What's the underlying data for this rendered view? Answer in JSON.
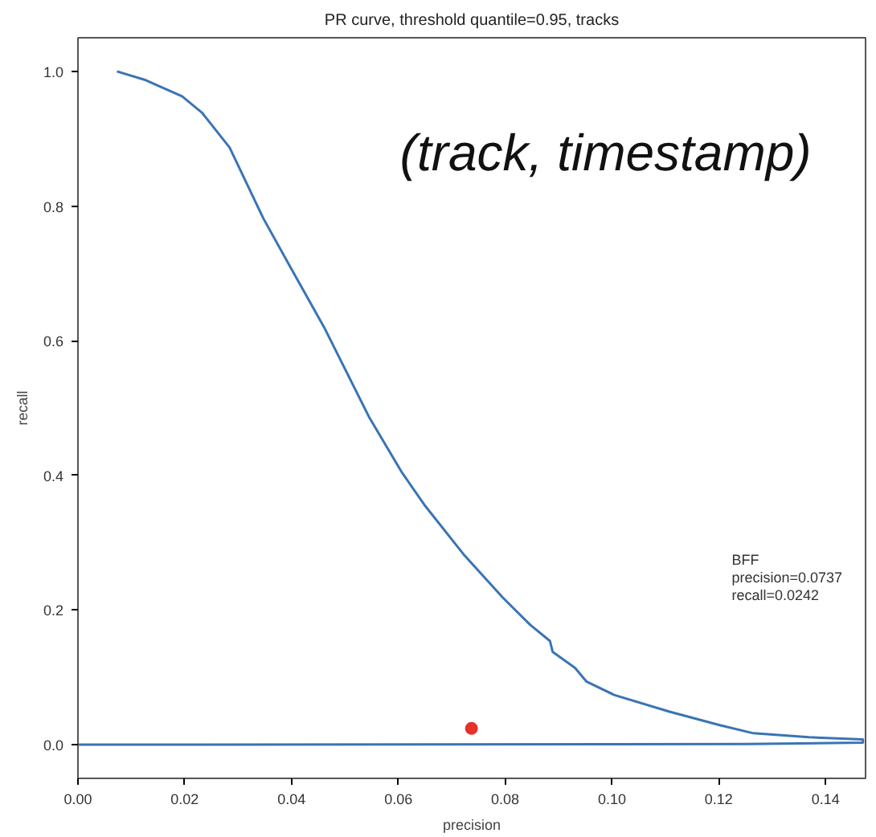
{
  "chart_data": {
    "type": "line",
    "title": "PR curve, threshold quantile=0.95, tracks",
    "xlabel": "precision",
    "ylabel": "recall",
    "xlim": [
      0,
      0.1475
    ],
    "ylim": [
      -0.05,
      1.05
    ],
    "xticks": [
      {
        "value": 0,
        "label": "0.00"
      },
      0.02,
      0.04,
      0.06,
      0.08,
      {
        "value": 0.1,
        "label": "0.10"
      },
      0.12,
      0.14
    ],
    "yticks": [
      {
        "value": 0,
        "label": "0.0"
      },
      0.2,
      0.4,
      0.6,
      0.8,
      {
        "value": 1,
        "label": "1.0"
      }
    ],
    "grid": false,
    "annotations": [
      "(track, timestamp)",
      "BFF\nprecision=0.0737\nrecall=0.0242"
    ],
    "series": [
      {
        "color": "#3a74b4",
        "x": [
          0.0073,
          0.0127,
          0.0195,
          0.0232,
          0.0284,
          0.0347,
          0.0398,
          0.0461,
          0.0545,
          0.0607,
          0.0649,
          0.0722,
          0.0795,
          0.0847,
          0.0884,
          0.0889,
          0.0931,
          0.0952,
          0.1004,
          0.1108,
          0.1202,
          0.1265,
          0.1369,
          0.147,
          0.147,
          0.125,
          0.0
        ],
        "values": [
          1.0,
          0.987,
          0.963,
          0.939,
          0.887,
          0.782,
          0.709,
          0.62,
          0.487,
          0.404,
          0.356,
          0.283,
          0.219,
          0.178,
          0.154,
          0.138,
          0.114,
          0.094,
          0.074,
          0.049,
          0.029,
          0.017,
          0.011,
          0.008,
          0.003,
          0.001,
          0.0
        ]
      },
      {
        "type": "scatter",
        "color": "#e8312a",
        "marker": "circle",
        "x": [
          0.0737
        ],
        "values": [
          0.0242
        ]
      }
    ]
  }
}
